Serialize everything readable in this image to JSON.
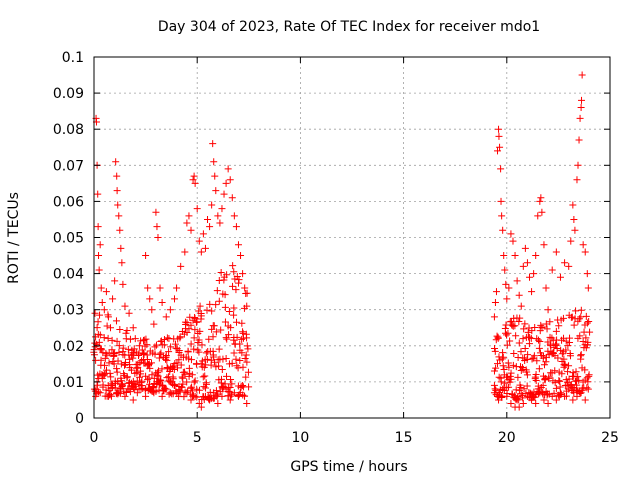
{
  "chart_data": {
    "type": "scatter",
    "title": "Day 304 of 2023, Rate Of TEC Index for receiver mdo1",
    "xlabel": "GPS time / hours",
    "ylabel": "ROTI / TECUs",
    "xlim": [
      0,
      25
    ],
    "ylim": [
      0,
      0.1
    ],
    "x_ticks": [
      "0",
      "5",
      "10",
      "15",
      "20",
      "25"
    ],
    "y_ticks": [
      "0",
      "0.01",
      "0.02",
      "0.03",
      "0.04",
      "0.05",
      "0.06",
      "0.07",
      "0.08",
      "0.09",
      "0.1"
    ],
    "grid": true,
    "marker": "+",
    "color": "#ff0000",
    "series": [
      {
        "points": [
          [
            0.05,
            0.029
          ],
          [
            0.1,
            0.083
          ],
          [
            0.12,
            0.082
          ],
          [
            0.15,
            0.07
          ],
          [
            0.18,
            0.062
          ],
          [
            0.2,
            0.053
          ],
          [
            0.22,
            0.045
          ],
          [
            0.25,
            0.041
          ],
          [
            0.3,
            0.048
          ],
          [
            0.35,
            0.036
          ],
          [
            0.4,
            0.032
          ],
          [
            0.5,
            0.03
          ],
          [
            0.6,
            0.035
          ],
          [
            0.7,
            0.028
          ],
          [
            0.8,
            0.025
          ],
          [
            0.9,
            0.033
          ],
          [
            1.0,
            0.038
          ],
          [
            1.05,
            0.071
          ],
          [
            1.1,
            0.067
          ],
          [
            1.12,
            0.063
          ],
          [
            1.15,
            0.059
          ],
          [
            1.2,
            0.056
          ],
          [
            1.25,
            0.052
          ],
          [
            1.3,
            0.047
          ],
          [
            1.35,
            0.043
          ],
          [
            1.4,
            0.037
          ],
          [
            1.5,
            0.031
          ],
          [
            1.7,
            0.029
          ],
          [
            1.9,
            0.025
          ],
          [
            2.0,
            0.022
          ],
          [
            2.2,
            0.02
          ],
          [
            2.4,
            0.018
          ],
          [
            2.5,
            0.045
          ],
          [
            2.6,
            0.036
          ],
          [
            2.7,
            0.033
          ],
          [
            2.8,
            0.03
          ],
          [
            2.9,
            0.026
          ],
          [
            3.0,
            0.057
          ],
          [
            3.05,
            0.053
          ],
          [
            3.1,
            0.05
          ],
          [
            3.2,
            0.036
          ],
          [
            3.3,
            0.032
          ],
          [
            3.5,
            0.028
          ],
          [
            3.7,
            0.03
          ],
          [
            3.9,
            0.033
          ],
          [
            4.0,
            0.036
          ],
          [
            4.2,
            0.042
          ],
          [
            4.4,
            0.046
          ],
          [
            4.5,
            0.054
          ],
          [
            4.6,
            0.056
          ],
          [
            4.7,
            0.052
          ],
          [
            4.8,
            0.066
          ],
          [
            4.85,
            0.067
          ],
          [
            4.9,
            0.065
          ],
          [
            5.0,
            0.058
          ],
          [
            5.1,
            0.049
          ],
          [
            5.2,
            0.046
          ],
          [
            5.3,
            0.051
          ],
          [
            5.4,
            0.047
          ],
          [
            5.5,
            0.055
          ],
          [
            5.6,
            0.053
          ],
          [
            5.7,
            0.059
          ],
          [
            5.75,
            0.076
          ],
          [
            5.8,
            0.071
          ],
          [
            5.85,
            0.067
          ],
          [
            5.9,
            0.063
          ],
          [
            6.0,
            0.056
          ],
          [
            6.1,
            0.054
          ],
          [
            6.2,
            0.058
          ],
          [
            6.3,
            0.062
          ],
          [
            6.4,
            0.065
          ],
          [
            6.5,
            0.069
          ],
          [
            6.6,
            0.066
          ],
          [
            6.7,
            0.061
          ],
          [
            6.8,
            0.056
          ],
          [
            6.9,
            0.053
          ],
          [
            7.0,
            0.048
          ],
          [
            7.1,
            0.045
          ],
          [
            7.2,
            0.04
          ],
          [
            7.3,
            0.036
          ],
          [
            7.4,
            0.031
          ],
          [
            0.02,
            0.008
          ],
          [
            0.08,
            0.006
          ],
          [
            0.15,
            0.01
          ],
          [
            0.3,
            0.007
          ],
          [
            0.5,
            0.012
          ],
          [
            0.7,
            0.006
          ],
          [
            0.9,
            0.009
          ],
          [
            1.1,
            0.007
          ],
          [
            1.3,
            0.011
          ],
          [
            1.5,
            0.006
          ],
          [
            1.7,
            0.008
          ],
          [
            1.9,
            0.005
          ],
          [
            2.1,
            0.007
          ],
          [
            2.3,
            0.009
          ],
          [
            2.5,
            0.006
          ],
          [
            2.7,
            0.008
          ],
          [
            2.9,
            0.007
          ],
          [
            3.1,
            0.01
          ],
          [
            3.3,
            0.006
          ],
          [
            3.5,
            0.008
          ],
          [
            3.7,
            0.007
          ],
          [
            3.9,
            0.009
          ],
          [
            4.1,
            0.006
          ],
          [
            4.3,
            0.011
          ],
          [
            4.5,
            0.007
          ],
          [
            4.7,
            0.005
          ],
          [
            4.9,
            0.006
          ],
          [
            5.1,
            0.004
          ],
          [
            5.2,
            0.003
          ],
          [
            5.4,
            0.006
          ],
          [
            5.6,
            0.005
          ],
          [
            5.8,
            0.007
          ],
          [
            6.0,
            0.004
          ],
          [
            6.2,
            0.006
          ],
          [
            6.4,
            0.008
          ],
          [
            6.6,
            0.005
          ],
          [
            6.8,
            0.007
          ],
          [
            7.0,
            0.006
          ],
          [
            7.2,
            0.009
          ],
          [
            7.4,
            0.004
          ],
          [
            19.4,
            0.028
          ],
          [
            19.45,
            0.032
          ],
          [
            19.5,
            0.035
          ],
          [
            19.55,
            0.074
          ],
          [
            19.6,
            0.08
          ],
          [
            19.62,
            0.078
          ],
          [
            19.65,
            0.075
          ],
          [
            19.7,
            0.069
          ],
          [
            19.72,
            0.06
          ],
          [
            19.75,
            0.056
          ],
          [
            19.8,
            0.052
          ],
          [
            19.85,
            0.045
          ],
          [
            19.9,
            0.041
          ],
          [
            19.95,
            0.037
          ],
          [
            20.0,
            0.033
          ],
          [
            20.1,
            0.036
          ],
          [
            20.2,
            0.051
          ],
          [
            20.3,
            0.049
          ],
          [
            20.4,
            0.045
          ],
          [
            20.5,
            0.038
          ],
          [
            20.6,
            0.034
          ],
          [
            20.7,
            0.031
          ],
          [
            20.8,
            0.042
          ],
          [
            20.9,
            0.047
          ],
          [
            21.0,
            0.043
          ],
          [
            21.1,
            0.039
          ],
          [
            21.2,
            0.035
          ],
          [
            21.3,
            0.04
          ],
          [
            21.4,
            0.045
          ],
          [
            21.5,
            0.056
          ],
          [
            21.6,
            0.06
          ],
          [
            21.65,
            0.061
          ],
          [
            21.7,
            0.057
          ],
          [
            21.8,
            0.048
          ],
          [
            21.9,
            0.036
          ],
          [
            22.0,
            0.03
          ],
          [
            22.2,
            0.041
          ],
          [
            22.4,
            0.046
          ],
          [
            22.6,
            0.039
          ],
          [
            22.8,
            0.043
          ],
          [
            23.0,
            0.042
          ],
          [
            23.1,
            0.049
          ],
          [
            23.2,
            0.059
          ],
          [
            23.25,
            0.055
          ],
          [
            23.3,
            0.052
          ],
          [
            23.4,
            0.066
          ],
          [
            23.45,
            0.07
          ],
          [
            23.5,
            0.077
          ],
          [
            23.55,
            0.083
          ],
          [
            23.6,
            0.086
          ],
          [
            23.62,
            0.088
          ],
          [
            23.65,
            0.095
          ],
          [
            23.7,
            0.048
          ],
          [
            23.8,
            0.046
          ],
          [
            23.9,
            0.04
          ],
          [
            23.95,
            0.036
          ],
          [
            19.4,
            0.007
          ],
          [
            19.6,
            0.005
          ],
          [
            19.8,
            0.008
          ],
          [
            20.0,
            0.006
          ],
          [
            20.2,
            0.004
          ],
          [
            20.4,
            0.003
          ],
          [
            20.5,
            0.005
          ],
          [
            20.6,
            0.003
          ],
          [
            20.8,
            0.004
          ],
          [
            21.0,
            0.006
          ],
          [
            21.2,
            0.005
          ],
          [
            21.4,
            0.004
          ],
          [
            21.6,
            0.007
          ],
          [
            21.8,
            0.005
          ],
          [
            22.0,
            0.004
          ],
          [
            22.2,
            0.006
          ],
          [
            22.4,
            0.005
          ],
          [
            22.6,
            0.007
          ],
          [
            22.8,
            0.006
          ],
          [
            23.0,
            0.008
          ],
          [
            23.2,
            0.005
          ],
          [
            23.4,
            0.006
          ],
          [
            23.6,
            0.007
          ],
          [
            23.8,
            0.005
          ],
          [
            23.95,
            0.008
          ]
        ]
      }
    ],
    "dense_bands": [
      {
        "x_start": 0.0,
        "x_end": 7.5,
        "y_low": [
          0.006,
          0.006,
          0.008,
          0.007,
          0.006,
          0.005,
          0.006,
          0.006
        ],
        "y_high": [
          0.03,
          0.028,
          0.022,
          0.022,
          0.026,
          0.034,
          0.044,
          0.038
        ]
      },
      {
        "x_start": 19.4,
        "x_end": 24.0,
        "y_low": [
          0.006,
          0.005,
          0.006,
          0.006,
          0.007
        ],
        "y_high": [
          0.024,
          0.03,
          0.026,
          0.028,
          0.034
        ]
      }
    ]
  }
}
